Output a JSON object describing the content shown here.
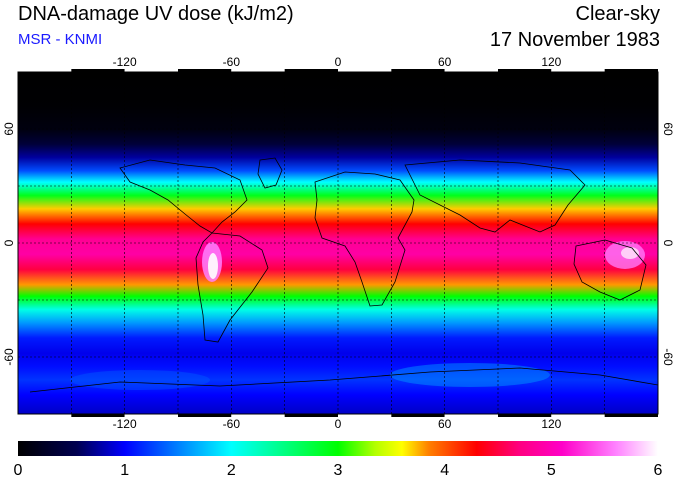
{
  "header": {
    "title": "DNA-damage UV dose (kJ/m2)",
    "subtitle": "MSR - KNMI",
    "condition": "Clear-sky",
    "date": "17 November 1983"
  },
  "map": {
    "lon_range": [
      -180,
      180
    ],
    "lat_range": [
      -90,
      90
    ],
    "lon_ticks": [
      -120,
      -60,
      0,
      60,
      120
    ],
    "lat_ticks": [
      60,
      0,
      -60
    ],
    "lon_labels": [
      "-120",
      "-60",
      "0",
      "60",
      "120"
    ],
    "lat_labels": [
      "60",
      "0",
      "-60"
    ],
    "grid_spacing_deg": 30,
    "colors": {
      "frame": "#000000",
      "grid": "#000000",
      "coast": "#000000"
    }
  },
  "colorbar": {
    "min": 0,
    "max": 6,
    "tick_values": [
      0,
      1,
      2,
      3,
      4,
      5,
      6
    ],
    "tick_labels": [
      "0",
      "1",
      "2",
      "3",
      "4",
      "5",
      "6"
    ],
    "stops": [
      {
        "value": 0.0,
        "color": "#000000"
      },
      {
        "value": 0.55,
        "color": "#000050"
      },
      {
        "value": 1.0,
        "color": "#0000ff"
      },
      {
        "value": 1.5,
        "color": "#0080ff"
      },
      {
        "value": 2.0,
        "color": "#00ffff"
      },
      {
        "value": 2.5,
        "color": "#00ff80"
      },
      {
        "value": 3.0,
        "color": "#00ff00"
      },
      {
        "value": 3.35,
        "color": "#b4ff00"
      },
      {
        "value": 3.6,
        "color": "#ffff00"
      },
      {
        "value": 3.85,
        "color": "#ff8000"
      },
      {
        "value": 4.3,
        "color": "#ff0000"
      },
      {
        "value": 4.7,
        "color": "#ff0080"
      },
      {
        "value": 5.1,
        "color": "#ff00c8"
      },
      {
        "value": 5.6,
        "color": "#ff80ff"
      },
      {
        "value": 6.0,
        "color": "#ffffff"
      }
    ]
  },
  "field": {
    "unit": "kJ/m2",
    "zonal_profile": [
      {
        "lat": 90,
        "dose": 0.0
      },
      {
        "lat": 72,
        "dose": 0.02
      },
      {
        "lat": 60,
        "dose": 0.1
      },
      {
        "lat": 52,
        "dose": 0.4
      },
      {
        "lat": 45,
        "dose": 0.75
      },
      {
        "lat": 38,
        "dose": 1.3
      },
      {
        "lat": 32,
        "dose": 2.0
      },
      {
        "lat": 25,
        "dose": 2.9
      },
      {
        "lat": 18,
        "dose": 3.7
      },
      {
        "lat": 10,
        "dose": 4.3
      },
      {
        "lat": 2,
        "dose": 4.8
      },
      {
        "lat": -6,
        "dose": 4.9
      },
      {
        "lat": -14,
        "dose": 4.5
      },
      {
        "lat": -22,
        "dose": 3.8
      },
      {
        "lat": -28,
        "dose": 3.0
      },
      {
        "lat": -35,
        "dose": 2.1
      },
      {
        "lat": -42,
        "dose": 1.6
      },
      {
        "lat": -50,
        "dose": 1.1
      },
      {
        "lat": -58,
        "dose": 0.95
      },
      {
        "lat": -65,
        "dose": 1.05
      },
      {
        "lat": -72,
        "dose": 1.2
      },
      {
        "lat": -80,
        "dose": 1.0
      },
      {
        "lat": -90,
        "dose": 0.85
      }
    ]
  }
}
